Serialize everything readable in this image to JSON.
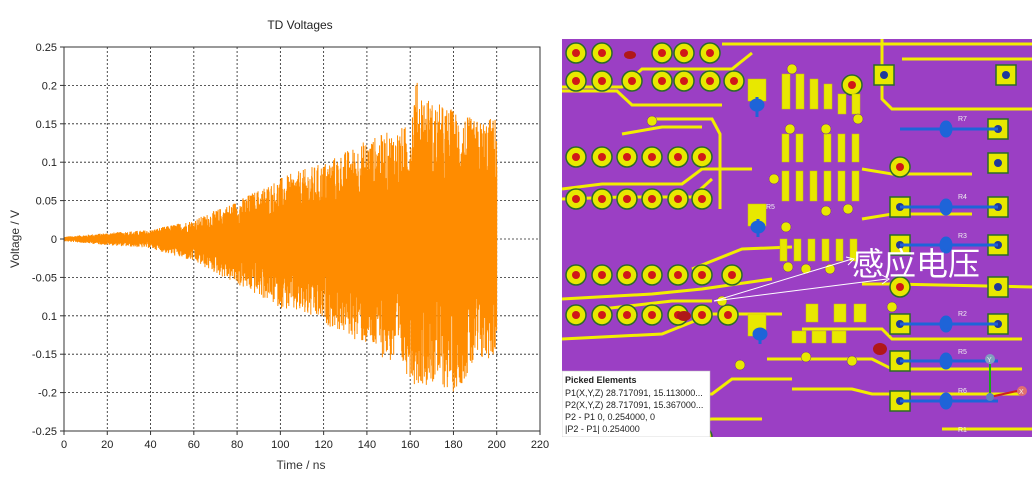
{
  "chart_data": {
    "type": "line",
    "title": "TD Voltages",
    "xlabel": "Time / ns",
    "ylabel": "Voltage / V",
    "xlim": [
      0,
      220
    ],
    "ylim": [
      -0.25,
      0.25
    ],
    "x_ticks": [
      "0",
      "20",
      "40",
      "60",
      "80",
      "100",
      "120",
      "140",
      "160",
      "180",
      "200",
      "220"
    ],
    "y_ticks": [
      "0.25",
      "0.2",
      "0.15",
      "0.1",
      "0.05",
      "0",
      "-0.05",
      "0.1",
      "-0.15",
      "-0.2",
      "-0.25"
    ],
    "grid": true,
    "series": [
      {
        "color": "#ff8c00",
        "x_range": [
          0,
          200
        ],
        "envelope": {
          "x": [
            0,
            20,
            40,
            60,
            80,
            100,
            120,
            140,
            160,
            162,
            170,
            180,
            190,
            200
          ],
          "upper": [
            0.003,
            0.008,
            0.012,
            0.025,
            0.05,
            0.08,
            0.1,
            0.13,
            0.15,
            0.21,
            0.18,
            0.17,
            0.155,
            0.16
          ],
          "lower": [
            -0.003,
            -0.008,
            -0.012,
            -0.03,
            -0.06,
            -0.09,
            -0.11,
            -0.14,
            -0.18,
            -0.19,
            -0.19,
            -0.2,
            -0.17,
            -0.15
          ]
        }
      }
    ]
  },
  "pcb_view": {
    "background_color": "#9b3fc4",
    "trace_color": "#f2ee00",
    "pad_color": "#e8e800",
    "annotation": "感应电压",
    "component_labels": [
      "R7",
      "R4",
      "R3",
      "R2",
      "R5",
      "R6",
      "R1",
      "R5"
    ],
    "axis_gizmo": [
      "Y",
      "X"
    ],
    "picked_panel": {
      "title": "Picked Elements",
      "rows": [
        "P1(X,Y,Z)  28.717091, 15.113000...",
        "P2(X,Y,Z)  28.717091, 15.367000...",
        "P2 - P1     0, 0.254000, 0",
        "|P2 - P1|   0.254000"
      ]
    }
  }
}
